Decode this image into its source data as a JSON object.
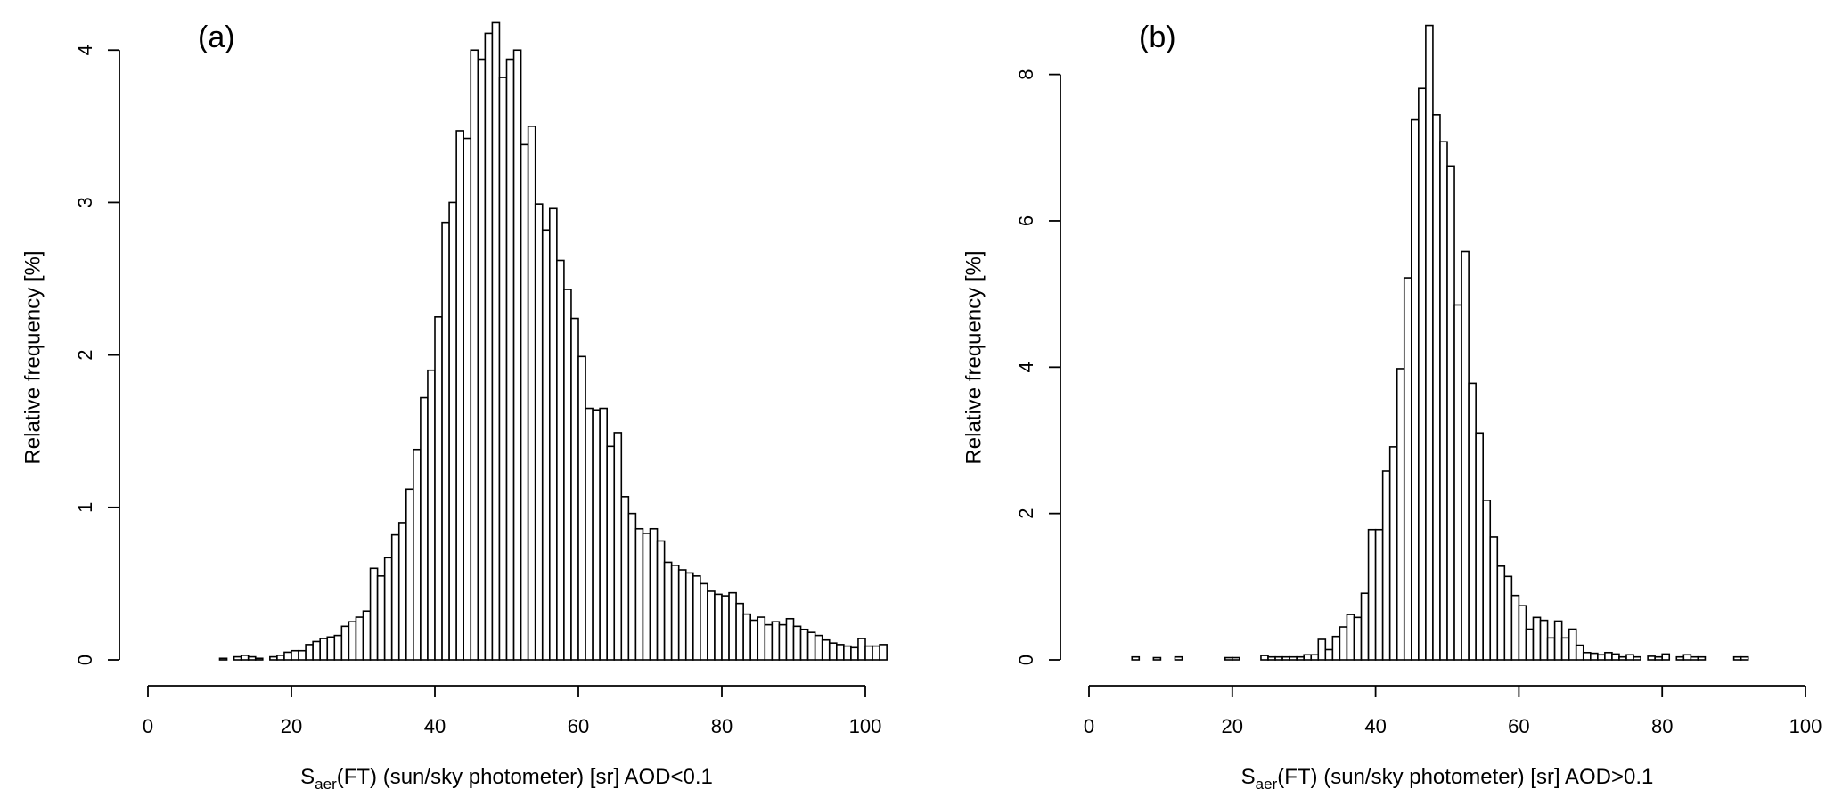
{
  "chart_data": [
    {
      "type": "histogram",
      "panel_label": "(a)",
      "xlabel_main": "S",
      "xlabel_sub": "aer",
      "xlabel_rest": "(FT) (sun/sky photometer) [sr] AOD<0.1",
      "ylabel": "Relative frequency [%]",
      "xlim": [
        0,
        100
      ],
      "ylim": [
        0,
        4.2
      ],
      "xticks": [
        "0",
        "20",
        "40",
        "60",
        "80",
        "100"
      ],
      "xtick_values": [
        0,
        20,
        40,
        60,
        80,
        100
      ],
      "yticks": [
        "0",
        "1",
        "2",
        "3",
        "4"
      ],
      "ytick_values": [
        0,
        1,
        2,
        3,
        4
      ],
      "bin_start": 10,
      "bin_width": 1,
      "values": [
        0.01,
        0.0,
        0.02,
        0.03,
        0.02,
        0.01,
        0.0,
        0.02,
        0.03,
        0.05,
        0.06,
        0.06,
        0.1,
        0.12,
        0.14,
        0.15,
        0.16,
        0.22,
        0.25,
        0.28,
        0.32,
        0.6,
        0.55,
        0.67,
        0.82,
        0.9,
        1.12,
        1.38,
        1.72,
        1.9,
        2.25,
        2.87,
        3.0,
        3.47,
        3.42,
        4.0,
        3.94,
        4.11,
        4.18,
        3.82,
        3.94,
        4.0,
        3.38,
        3.5,
        2.99,
        2.82,
        2.96,
        2.62,
        2.43,
        2.24,
        1.99,
        1.65,
        1.64,
        1.65,
        1.4,
        1.49,
        1.07,
        0.96,
        0.86,
        0.83,
        0.86,
        0.78,
        0.64,
        0.62,
        0.59,
        0.57,
        0.55,
        0.5,
        0.45,
        0.43,
        0.42,
        0.44,
        0.37,
        0.3,
        0.26,
        0.28,
        0.23,
        0.25,
        0.23,
        0.27,
        0.22,
        0.2,
        0.18,
        0.16,
        0.13,
        0.11,
        0.1,
        0.09,
        0.08,
        0.14,
        0.09,
        0.09,
        0.1
      ]
    },
    {
      "type": "histogram",
      "panel_label": "(b)",
      "xlabel_main": "S",
      "xlabel_sub": "aer",
      "xlabel_rest": "(FT) (sun/sky photometer) [sr] AOD>0.1",
      "ylabel": "Relative frequency [%]",
      "xlim": [
        0,
        100
      ],
      "ylim": [
        0,
        8.75
      ],
      "xticks": [
        "0",
        "20",
        "40",
        "60",
        "80",
        "100"
      ],
      "xtick_values": [
        0,
        20,
        40,
        60,
        80,
        100
      ],
      "yticks": [
        "0",
        "2",
        "4",
        "6",
        "8"
      ],
      "ytick_values": [
        0,
        2,
        4,
        6,
        8
      ],
      "bin_start": 6,
      "bin_width": 1,
      "values": [
        0.04,
        0,
        0,
        0.03,
        0,
        0,
        0.04,
        0,
        0,
        0,
        0,
        0,
        0,
        0.03,
        0.03,
        0,
        0,
        0,
        0.06,
        0.04,
        0.04,
        0.04,
        0.04,
        0.04,
        0.07,
        0.07,
        0.28,
        0.14,
        0.32,
        0.45,
        0.62,
        0.58,
        0.91,
        1.78,
        1.78,
        2.58,
        2.91,
        3.98,
        5.22,
        7.38,
        7.81,
        8.67,
        7.45,
        7.08,
        6.75,
        4.85,
        5.58,
        3.78,
        3.1,
        2.18,
        1.68,
        1.28,
        1.14,
        0.88,
        0.74,
        0.42,
        0.58,
        0.54,
        0.3,
        0.53,
        0.3,
        0.42,
        0.2,
        0.1,
        0.09,
        0.07,
        0.1,
        0.08,
        0.04,
        0.07,
        0.04,
        0,
        0.05,
        0.04,
        0.08,
        0,
        0.04,
        0.07,
        0.04,
        0.04,
        0,
        0,
        0,
        0,
        0.04,
        0.04
      ]
    }
  ]
}
